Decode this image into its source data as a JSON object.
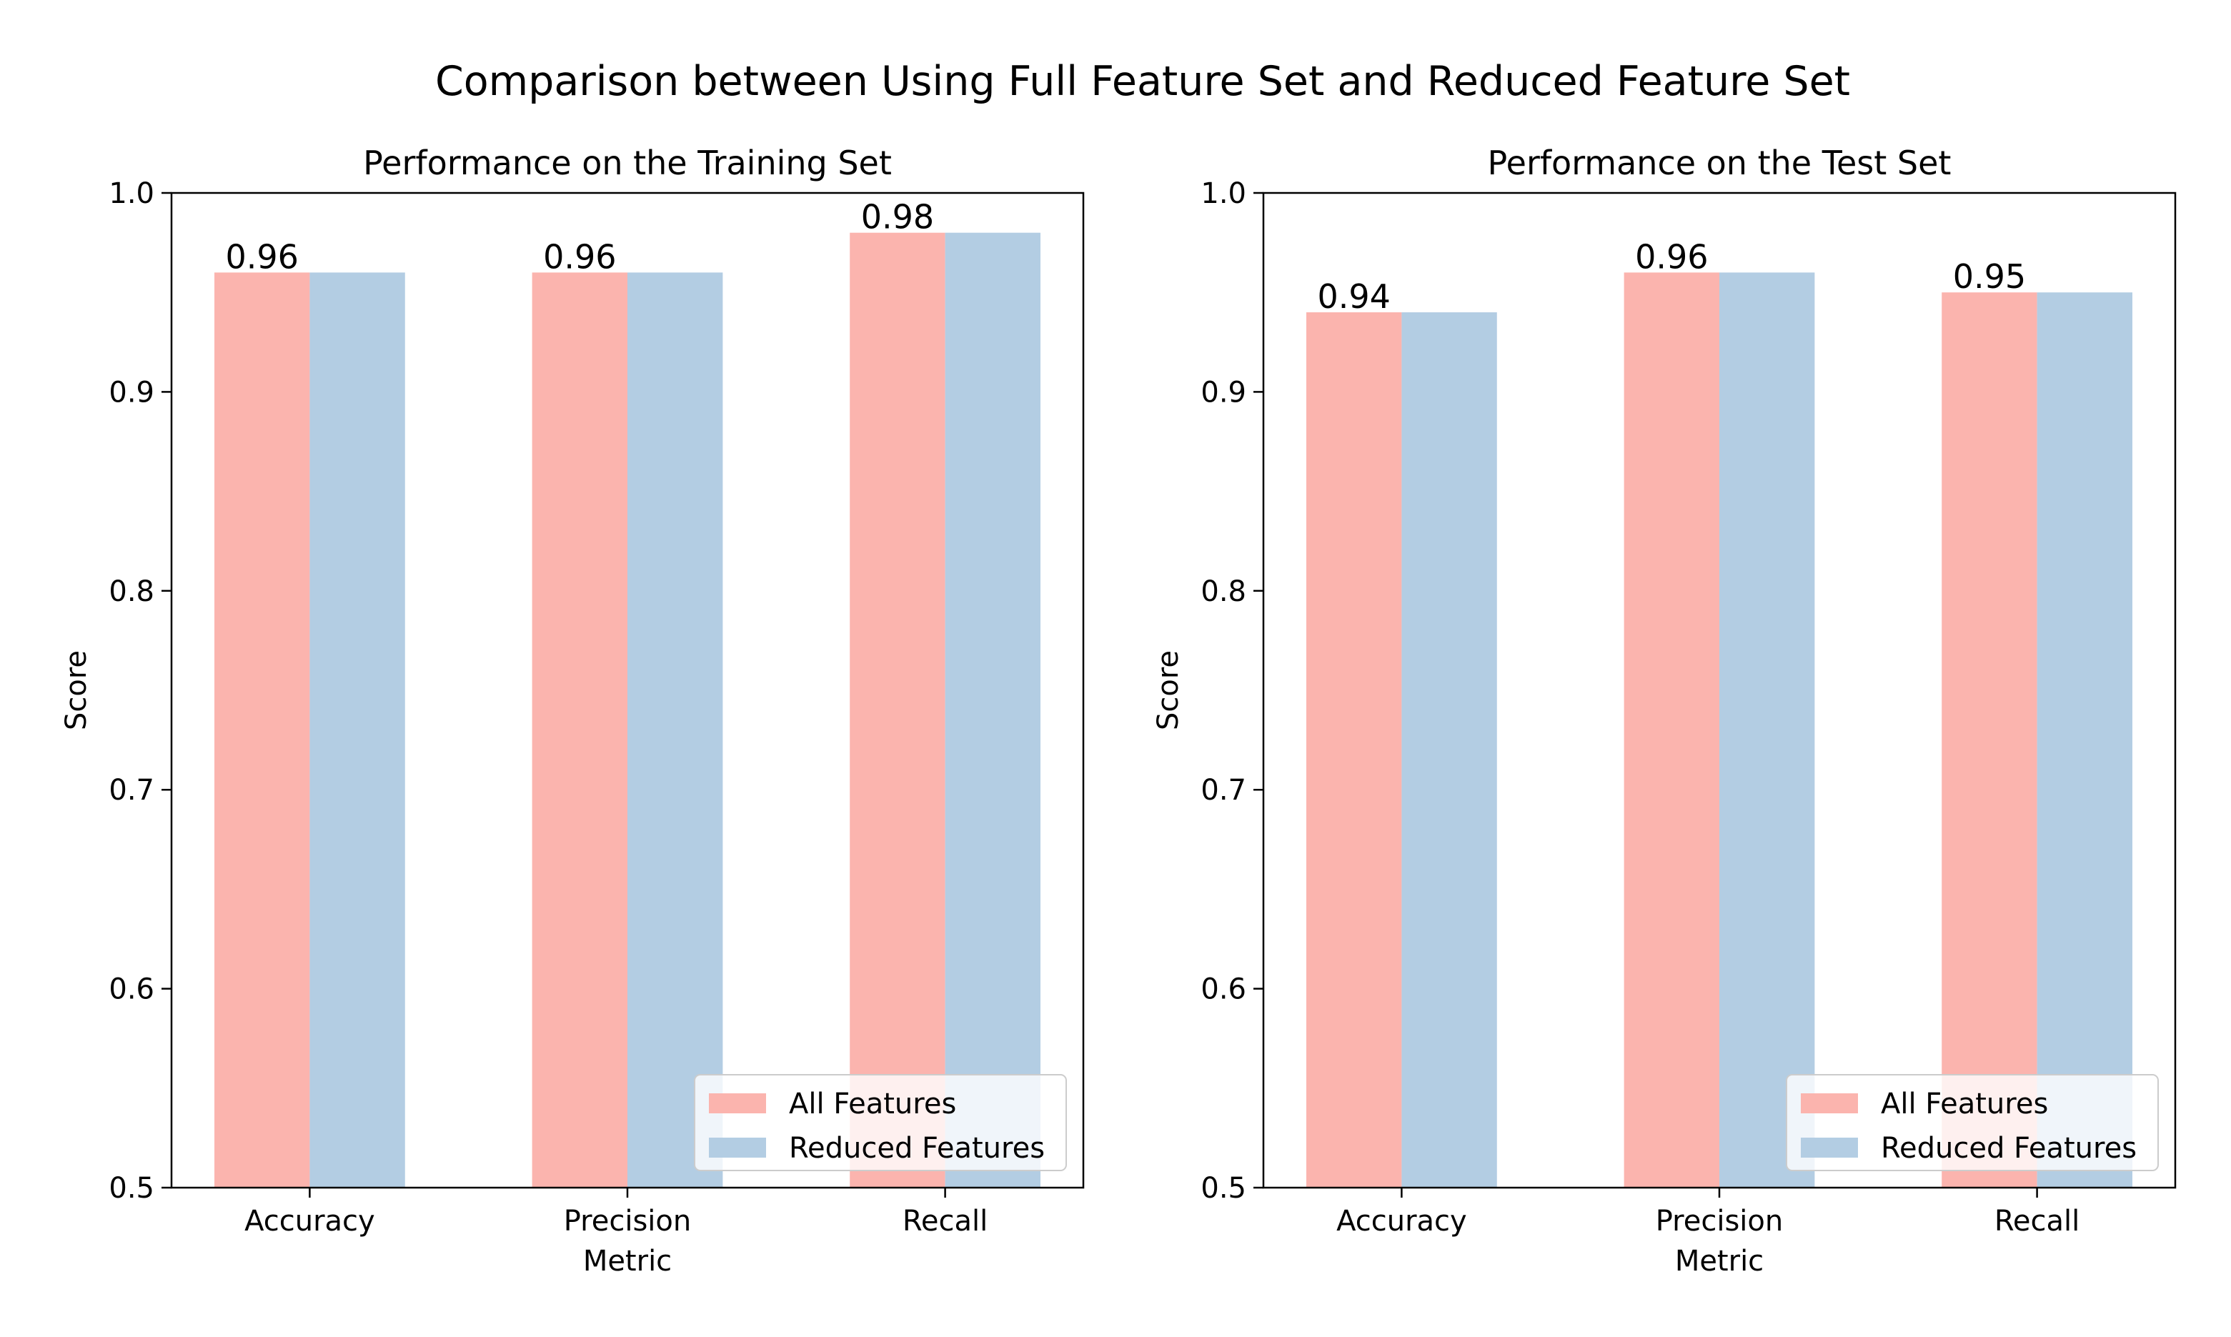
{
  "figure": {
    "title": "Comparison between Using Full Feature Set and Reduced Feature Set"
  },
  "colors": {
    "all_features": "#fbb4ae",
    "reduced_features": "#b3cde3"
  },
  "chart_data": [
    {
      "type": "bar",
      "title": "Performance on the Training Set",
      "xlabel": "Metric",
      "ylabel": "Score",
      "ylim": [
        0.5,
        1.0
      ],
      "yticks": [
        "0.5",
        "0.6",
        "0.7",
        "0.8",
        "0.9",
        "1.0"
      ],
      "categories": [
        "Accuracy",
        "Precision",
        "Recall"
      ],
      "series": [
        {
          "name": "All Features",
          "values": [
            0.96,
            0.96,
            0.98
          ]
        },
        {
          "name": "Reduced Features",
          "values": [
            0.96,
            0.96,
            0.98
          ]
        }
      ],
      "bar_labels": [
        "0.96",
        "0.96",
        "0.98"
      ],
      "legend_position": "lower right",
      "grid": false
    },
    {
      "type": "bar",
      "title": "Performance on the Test Set",
      "xlabel": "Metric",
      "ylabel": "Score",
      "ylim": [
        0.5,
        1.0
      ],
      "yticks": [
        "0.5",
        "0.6",
        "0.7",
        "0.8",
        "0.9",
        "1.0"
      ],
      "categories": [
        "Accuracy",
        "Precision",
        "Recall"
      ],
      "series": [
        {
          "name": "All Features",
          "values": [
            0.94,
            0.96,
            0.95
          ]
        },
        {
          "name": "Reduced Features",
          "values": [
            0.94,
            0.96,
            0.95
          ]
        }
      ],
      "bar_labels": [
        "0.94",
        "0.96",
        "0.95"
      ],
      "legend_position": "lower right",
      "grid": false
    }
  ]
}
